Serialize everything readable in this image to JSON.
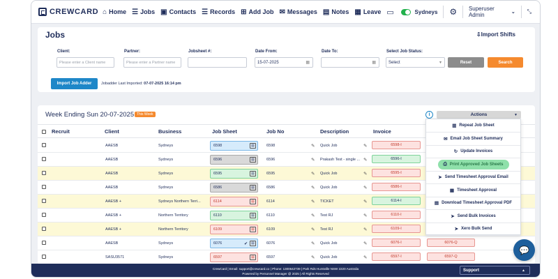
{
  "nav": {
    "logo": "CREWCARD",
    "items": [
      {
        "label": "Home",
        "icon": "home-icon",
        "glyph": "⌂"
      },
      {
        "label": "Jobs",
        "icon": "list-icon",
        "glyph": "☰"
      },
      {
        "label": "Contacts",
        "icon": "contacts-icon",
        "glyph": "▣"
      },
      {
        "label": "Records",
        "icon": "records-icon",
        "glyph": "☰"
      },
      {
        "label": "Add Job",
        "icon": "plus-icon",
        "glyph": "⊞"
      },
      {
        "label": "Messages",
        "icon": "chat-icon",
        "glyph": "✉"
      },
      {
        "label": "Notes",
        "icon": "note-icon",
        "glyph": "▤"
      },
      {
        "label": "Leave",
        "icon": "calendar-icon",
        "glyph": "▦"
      }
    ],
    "region": "Sydneys",
    "user": "Superuser Admin"
  },
  "filters": {
    "title": "Jobs",
    "import_shifts": "Import Shifts",
    "client_label": "Client:",
    "client_placeholder": "Please enter a Client name",
    "partner_label": "Partner:",
    "partner_placeholder": "Please enter a Partner name",
    "jobsheet_label": "Jobsheet #:",
    "date_from_label": "Date From:",
    "date_from_value": "15-07-2025",
    "date_to_label": "Date To:",
    "status_label": "Select Job Status:",
    "status_value": "Select",
    "reset_label": "Reset",
    "search_label": "Search",
    "import_label": "Import Job Adder",
    "imported_prefix": "Jobadder Last Imported:",
    "imported_value": "07-07-2025 16:14 pm"
  },
  "table": {
    "week_title": "Week Ending Sun 20-07-2025",
    "week_badge": "This Week",
    "actions_label": "Actions",
    "columns": {
      "recruit": "Recruit",
      "client": "Client",
      "business": "Business",
      "jobsheet": "Job Sheet",
      "jobno": "Job No",
      "description": "Description",
      "invoice": "Invoice"
    },
    "rows": [
      {
        "client": "AAESB",
        "business": "Sydneys",
        "jobsheet": "6598",
        "js_style": "blue",
        "jobno": "6598",
        "description": "Quick Job",
        "invoice": "6598-I",
        "inv_style": "red",
        "highlight": false,
        "extra": ""
      },
      {
        "client": "AAESB",
        "business": "Sydneys",
        "jobsheet": "6596",
        "js_style": "grey",
        "jobno": "6596",
        "description": "Prakash Test - single ...",
        "invoice": "6596-I",
        "inv_style": "green",
        "highlight": false,
        "extra": ""
      },
      {
        "client": "AAESB",
        "business": "Sydneys",
        "jobsheet": "6595",
        "js_style": "green",
        "jobno": "6595",
        "description": "Quick Job",
        "invoice": "6595-I",
        "inv_style": "red",
        "highlight": true,
        "extra": ""
      },
      {
        "client": "AAESB",
        "business": "Sydneys",
        "jobsheet": "6586",
        "js_style": "grey",
        "jobno": "6586",
        "description": "Quick Job",
        "invoice": "6586-I",
        "inv_style": "red",
        "highlight": false,
        "extra": ""
      },
      {
        "client": "AAESB +",
        "business": "Sydneys Northern Terri...",
        "jobsheet": "6114",
        "js_style": "red",
        "jobno": "6114",
        "description": "TICKET",
        "invoice": "6114-I",
        "inv_style": "green",
        "highlight": true,
        "extra": ""
      },
      {
        "client": "AAESB +",
        "business": "Northern Territory",
        "jobsheet": "6110",
        "js_style": "green",
        "jobno": "6110",
        "description": "Test RJ",
        "invoice": "6110-I",
        "inv_style": "red",
        "highlight": false,
        "extra": ""
      },
      {
        "client": "AAESB +",
        "business": "Northern Territory",
        "jobsheet": "6109",
        "js_style": "red",
        "jobno": "6109",
        "description": "Test RJ",
        "invoice": "6109-I",
        "inv_style": "red",
        "highlight": true,
        "extra": ""
      },
      {
        "client": "AAESB",
        "business": "Sydneys",
        "jobsheet": "6076",
        "js_style": "blue",
        "jobno": "6076",
        "description": "Quick Job",
        "invoice": "6076-I",
        "inv_style": "red",
        "highlight": false,
        "extra": "6076-Q",
        "tick": true
      },
      {
        "client": "SASU3571",
        "business": "Sydneys",
        "jobsheet": "6597",
        "js_style": "red",
        "jobno": "6597",
        "description": "Quick Job",
        "invoice": "6597-I",
        "inv_style": "red",
        "highlight": false,
        "extra": "6597-Q"
      }
    ]
  },
  "actions_menu": [
    {
      "label": "Repeat Job Sheet",
      "icon": "copy-icon",
      "glyph": "▥"
    },
    {
      "label": "Email Job Sheet Summary",
      "icon": "email-icon",
      "glyph": "✉"
    },
    {
      "label": "Update Invoices",
      "icon": "refresh-icon",
      "glyph": "↻"
    },
    {
      "label": "Print Approved Job Sheets",
      "icon": "print-icon",
      "glyph": "⎙",
      "hover": true
    },
    {
      "label": "Send Timesheet Approval Email",
      "icon": "send-icon",
      "glyph": "➤"
    },
    {
      "label": "Timesheet Approval",
      "icon": "calendar-icon",
      "glyph": "▦"
    },
    {
      "label": "Download Timesheet Approval PDF",
      "icon": "pdf-icon",
      "glyph": "▤"
    },
    {
      "label": "Send Bulk Invoices",
      "icon": "send-icon",
      "glyph": "➤"
    },
    {
      "label": "Xero Bulk Send",
      "icon": "send-icon",
      "glyph": "➤"
    }
  ],
  "footer": {
    "line1": "CrewCard | Email: support@crewcard.co | Phone: 1300642739 | Park Rds Hurstville NSW 2220 Australia",
    "line2": "Powered by Personnel Manager @ 2025 | All Rights Reserved",
    "support_label": "Support"
  }
}
